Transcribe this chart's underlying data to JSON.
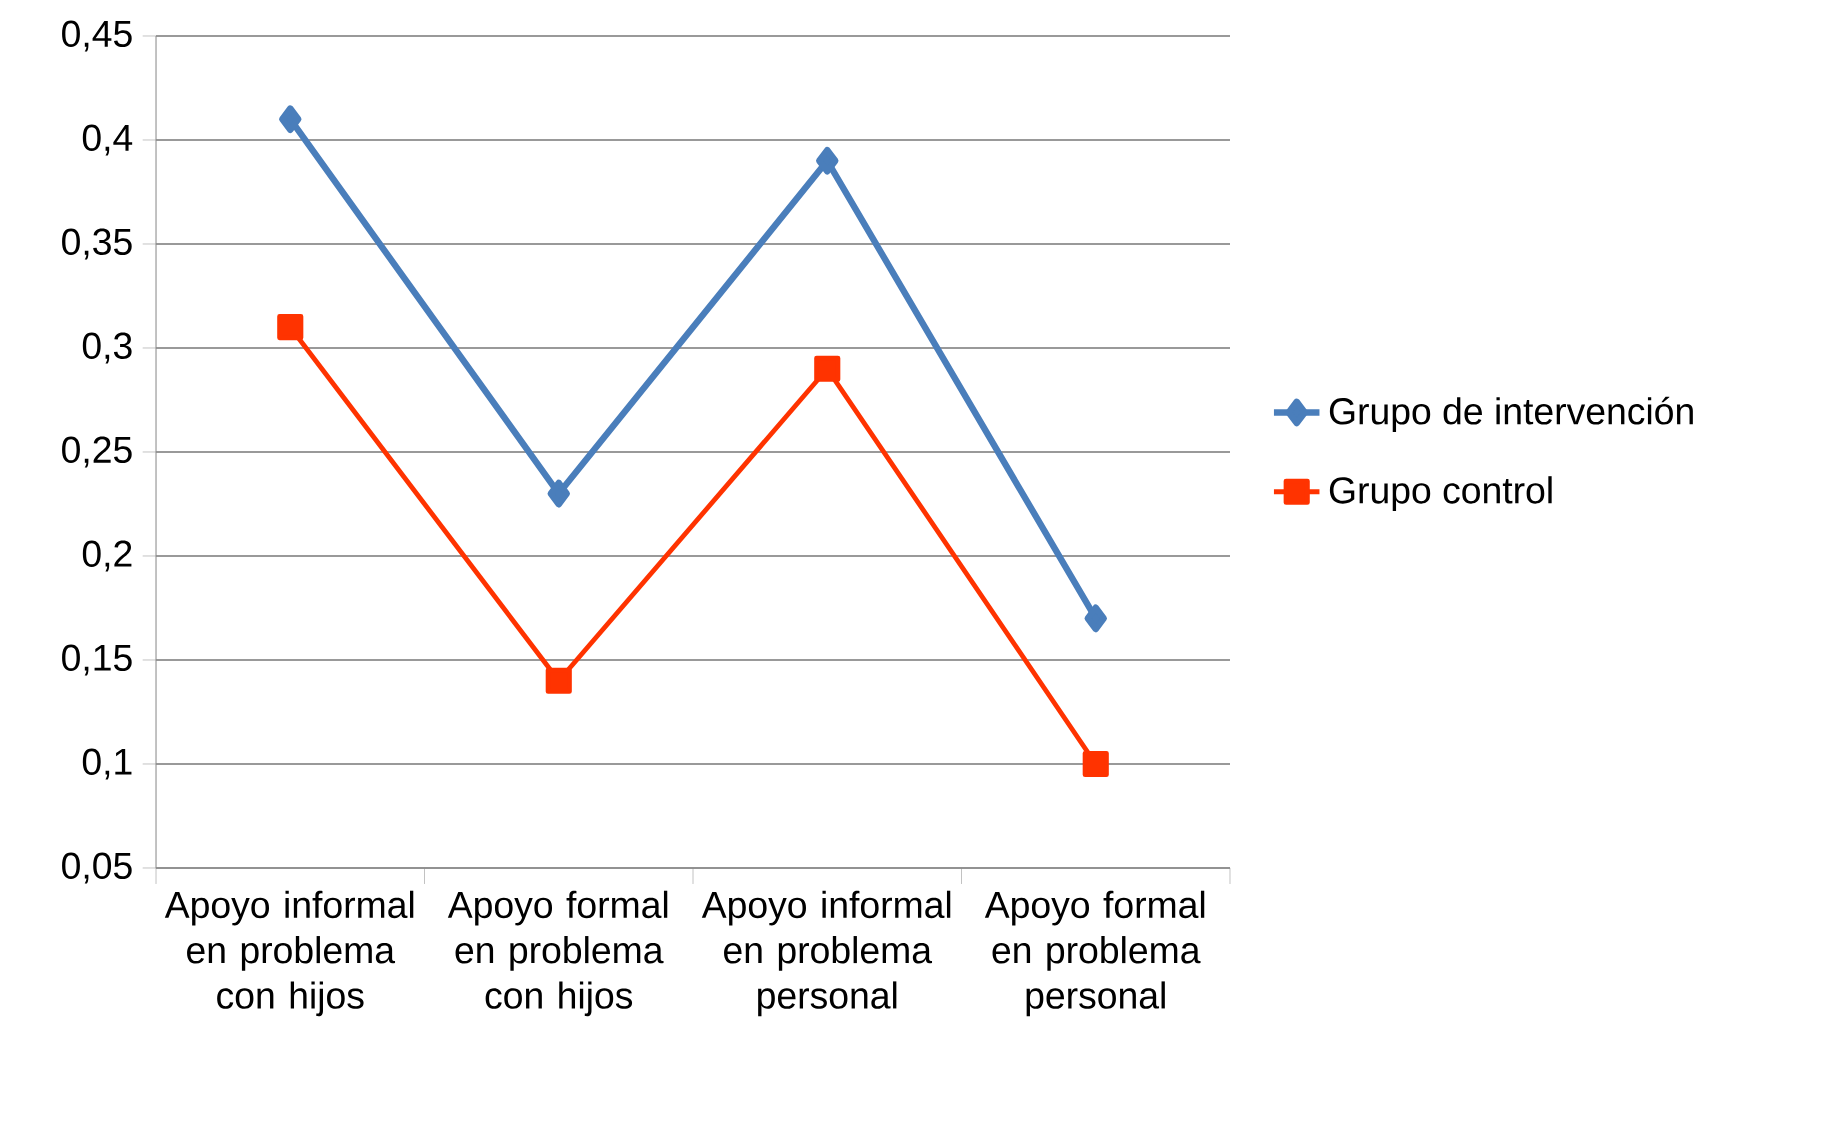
{
  "chart_data": {
    "type": "line",
    "categories": [
      "Apoyo informal en problema con hijos",
      "Apoyo formal en problema con hijos",
      "Apoyo informal en problema personal",
      "Apoyo formal en problema personal"
    ],
    "series": [
      {
        "name": "Grupo de intervención",
        "color": "#4a7ebb",
        "marker": "diamond",
        "values": [
          0.41,
          0.23,
          0.39,
          0.17
        ]
      },
      {
        "name": "Grupo control",
        "color": "#ff3300",
        "marker": "square",
        "values": [
          0.31,
          0.14,
          0.29,
          0.1
        ]
      }
    ],
    "ylim": [
      0.05,
      0.45
    ],
    "yticks": [
      {
        "value": 0.05,
        "label": "0,05"
      },
      {
        "value": 0.1,
        "label": "0,1"
      },
      {
        "value": 0.15,
        "label": "0,15"
      },
      {
        "value": 0.2,
        "label": "0,2"
      },
      {
        "value": 0.25,
        "label": "0,25"
      },
      {
        "value": 0.3,
        "label": "0,3"
      },
      {
        "value": 0.35,
        "label": "0,35"
      },
      {
        "value": 0.4,
        "label": "0,4"
      },
      {
        "value": 0.45,
        "label": "0,45"
      }
    ],
    "grid": "y",
    "legend": "right",
    "line_style": "solid"
  }
}
